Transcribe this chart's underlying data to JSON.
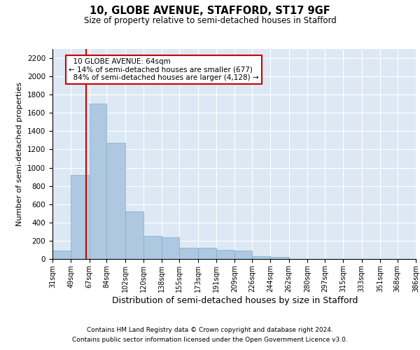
{
  "title1": "10, GLOBE AVENUE, STAFFORD, ST17 9GF",
  "title2": "Size of property relative to semi-detached houses in Stafford",
  "xlabel": "Distribution of semi-detached houses by size in Stafford",
  "ylabel": "Number of semi-detached properties",
  "footnote1": "Contains HM Land Registry data © Crown copyright and database right 2024.",
  "footnote2": "Contains public sector information licensed under the Open Government Licence v3.0.",
  "bins": [
    31,
    49,
    67,
    84,
    102,
    120,
    138,
    155,
    173,
    191,
    209,
    226,
    244,
    262,
    280,
    297,
    315,
    333,
    351,
    368,
    386
  ],
  "bin_labels": [
    "31sqm",
    "49sqm",
    "67sqm",
    "84sqm",
    "102sqm",
    "120sqm",
    "138sqm",
    "155sqm",
    "173sqm",
    "191sqm",
    "209sqm",
    "226sqm",
    "244sqm",
    "262sqm",
    "280sqm",
    "297sqm",
    "315sqm",
    "333sqm",
    "351sqm",
    "368sqm",
    "386sqm"
  ],
  "values": [
    90,
    920,
    1700,
    1270,
    520,
    250,
    240,
    120,
    120,
    100,
    90,
    30,
    25,
    0,
    0,
    0,
    0,
    0,
    0,
    0
  ],
  "bar_color": "#adc8e0",
  "bar_edge_color": "#7aafc8",
  "property_size": 64,
  "property_label": "10 GLOBE AVENUE: 64sqm",
  "pct_smaller": "14% of semi-detached houses are smaller (677)",
  "pct_larger": "84% of semi-detached houses are larger (4,128)",
  "vline_color": "#cc0000",
  "annotation_box_color": "#cc0000",
  "ylim": [
    0,
    2300
  ],
  "yticks": [
    0,
    200,
    400,
    600,
    800,
    1000,
    1200,
    1400,
    1600,
    1800,
    2000,
    2200
  ],
  "background_color": "#dde8f5",
  "grid_color": "#ffffff",
  "fig_width": 6.0,
  "fig_height": 5.0
}
